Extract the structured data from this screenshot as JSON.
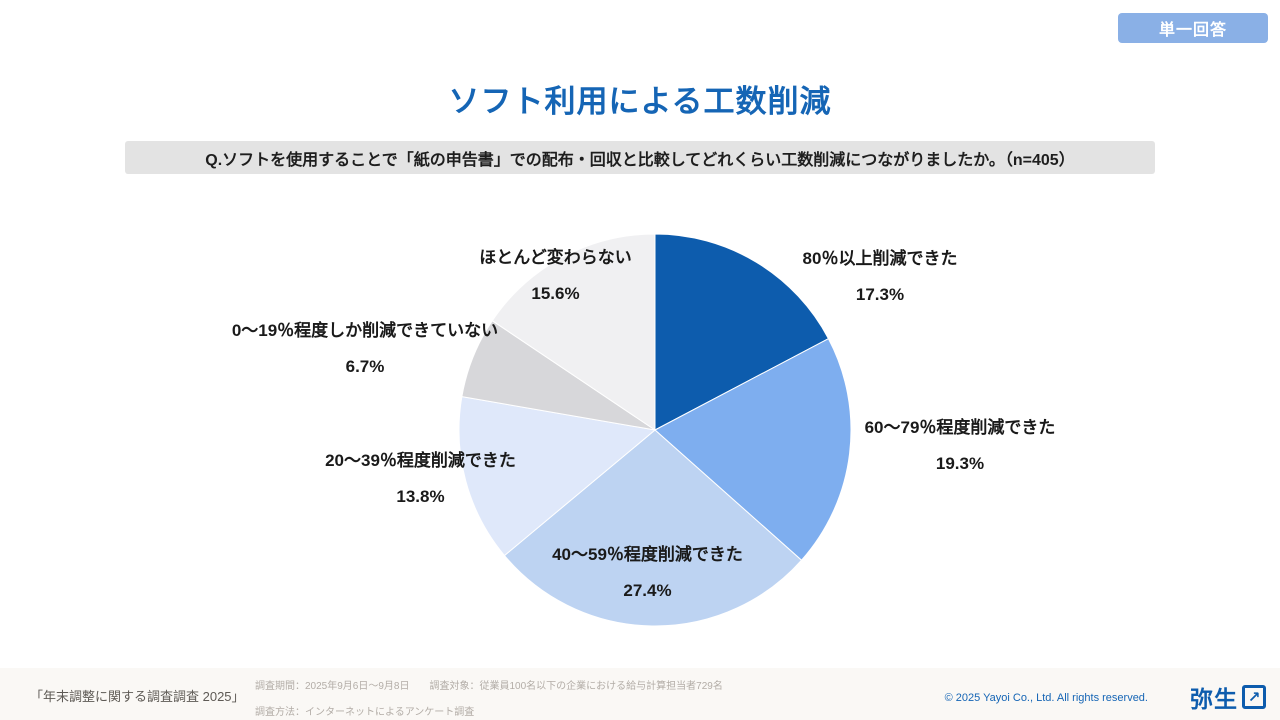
{
  "badge": {
    "label": "単一回答"
  },
  "title": "ソフト利用による工数削減",
  "question": "Q.ソフトを使用することで「紙の申告書」での配布・回収と比較してどれくらい工数削減につながりましたか。（n=405）",
  "chart_data": {
    "type": "pie",
    "title": "ソフト利用による工数削減",
    "n": 405,
    "start_angle_deg": -90,
    "direction": "clockwise",
    "legend_position": "around-slices",
    "segments": [
      {
        "label": "80％以上削減できた",
        "value": 17.3,
        "pct_label": "17.3%",
        "color": "#0D5CAD"
      },
      {
        "label": "60〜79％程度削減できた",
        "value": 19.3,
        "pct_label": "19.3%",
        "color": "#7EAEEF"
      },
      {
        "label": "40〜59％程度削減できた",
        "value": 27.4,
        "pct_label": "27.4%",
        "color": "#BDD3F2"
      },
      {
        "label": "20〜39％程度削減できた",
        "value": 13.8,
        "pct_label": "13.8%",
        "color": "#DFE8FA"
      },
      {
        "label": "0〜19％程度しか削減できていない",
        "value": 6.7,
        "pct_label": "6.7%",
        "color": "#D7D7DA"
      },
      {
        "label": "ほとんど変わらない",
        "value": 15.6,
        "pct_label": "15.6%",
        "color": "#F0F0F2"
      }
    ]
  },
  "footer": {
    "source": "「年末調整に関する調査調査 2025」",
    "survey_line1": "調査期間：2025年9月6日～9月8日　　調査対象：従業員100名以下の企業における給与計算担当者729名",
    "survey_line2": "調査方法：インターネットによるアンケート調査",
    "copyright": "© 2025 Yayoi Co., Ltd.  All rights reserved.",
    "logo_text": "弥生",
    "logo_icon": "arrow-up-right",
    "logo_icon_glyph": "↗"
  },
  "colors": {
    "title_blue": "#1565B5",
    "badge_bg": "#8AB0E6",
    "question_bg": "#E3E3E3",
    "footer_bg": "#FAF8F5",
    "copyright_blue": "#1565B5",
    "logo_blue": "#0D5CAD"
  }
}
